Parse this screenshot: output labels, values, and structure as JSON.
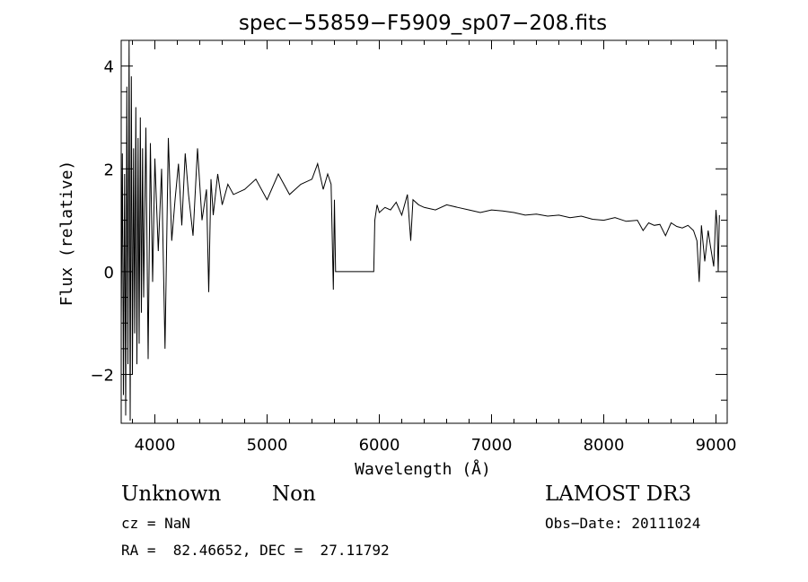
{
  "chart_data": {
    "type": "line",
    "title": "spec−55859−F5909_sp07−208.fits",
    "xlabel": "Wavelength (Å)",
    "ylabel": "Flux (relative)",
    "xlim": [
      3700,
      9100
    ],
    "ylim": [
      -2.95,
      4.5
    ],
    "xticks": [
      4000,
      5000,
      6000,
      7000,
      8000,
      9000
    ],
    "xtick_labels": [
      "4000",
      "5000",
      "6000",
      "7000",
      "8000",
      "9000"
    ],
    "yticks": [
      -2,
      0,
      2,
      4
    ],
    "ytick_labels": [
      "−2",
      "0",
      "2",
      "4"
    ],
    "series": [
      {
        "name": "spectrum",
        "x": [
          3700,
          3710,
          3720,
          3730,
          3740,
          3750,
          3760,
          3770,
          3780,
          3790,
          3800,
          3810,
          3820,
          3830,
          3840,
          3850,
          3860,
          3870,
          3880,
          3890,
          3900,
          3920,
          3940,
          3960,
          3980,
          4000,
          4030,
          4060,
          4090,
          4120,
          4150,
          4180,
          4210,
          4240,
          4270,
          4300,
          4340,
          4380,
          4420,
          4460,
          4480,
          4500,
          4520,
          4560,
          4600,
          4650,
          4700,
          4800,
          4900,
          5000,
          5100,
          5200,
          5300,
          5400,
          5450,
          5500,
          5540,
          5570,
          5590,
          5600,
          5610,
          5950,
          5960,
          5980,
          6000,
          6050,
          6100,
          6150,
          6200,
          6250,
          6280,
          6300,
          6350,
          6400,
          6500,
          6600,
          6700,
          6800,
          6900,
          7000,
          7100,
          7200,
          7300,
          7400,
          7500,
          7600,
          7700,
          7800,
          7900,
          8000,
          8100,
          8200,
          8300,
          8350,
          8400,
          8450,
          8500,
          8550,
          8600,
          8650,
          8700,
          8750,
          8800,
          8830,
          8850,
          8870,
          8900,
          8930,
          8950,
          8980,
          9000,
          9010,
          9020,
          9030
        ],
        "values": [
          -1.0,
          2.3,
          -2.4,
          1.9,
          -2.8,
          3.6,
          -1.8,
          4.5,
          -2.9,
          3.8,
          -2.0,
          2.4,
          -1.2,
          3.2,
          -1.8,
          2.6,
          -1.4,
          3.0,
          -0.8,
          2.4,
          -0.5,
          2.8,
          -1.7,
          2.5,
          -0.2,
          2.2,
          0.4,
          2.0,
          -1.5,
          2.6,
          0.6,
          1.4,
          2.1,
          0.9,
          2.3,
          1.5,
          0.7,
          2.4,
          1.0,
          1.6,
          -0.4,
          1.8,
          1.1,
          1.9,
          1.3,
          1.7,
          1.5,
          1.6,
          1.8,
          1.4,
          1.9,
          1.5,
          1.7,
          1.8,
          2.1,
          1.6,
          1.9,
          1.7,
          -0.35,
          1.4,
          0.0,
          0.0,
          1.0,
          1.3,
          1.15,
          1.25,
          1.2,
          1.35,
          1.1,
          1.5,
          0.6,
          1.4,
          1.3,
          1.25,
          1.2,
          1.3,
          1.25,
          1.2,
          1.15,
          1.2,
          1.18,
          1.15,
          1.1,
          1.12,
          1.08,
          1.1,
          1.05,
          1.08,
          1.02,
          1.0,
          1.05,
          0.98,
          1.0,
          0.8,
          0.95,
          0.9,
          0.92,
          0.7,
          0.95,
          0.88,
          0.85,
          0.9,
          0.8,
          0.6,
          -0.2,
          0.9,
          0.2,
          0.8,
          0.5,
          0.1,
          1.2,
          0.9,
          0.0,
          1.1
        ]
      }
    ]
  },
  "info": {
    "object_class": "Unknown",
    "subclass": "Non",
    "survey": "LAMOST DR3",
    "cz": "cz = NaN",
    "obs_date": "Obs−Date: 20111024",
    "coords": "RA =  82.46652, DEC =  27.11792"
  }
}
